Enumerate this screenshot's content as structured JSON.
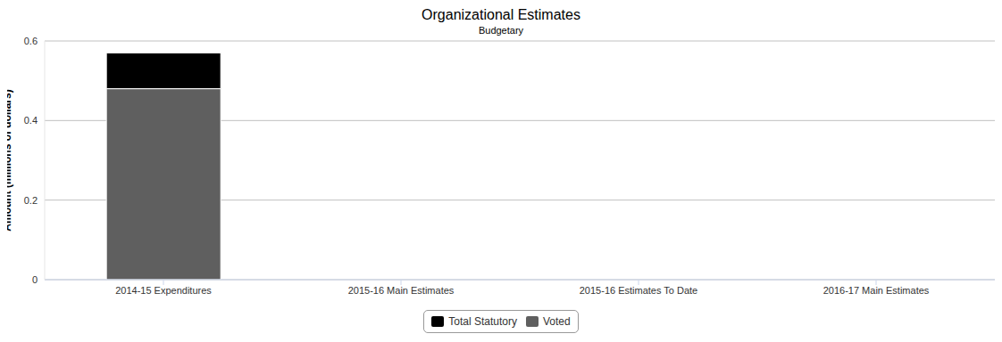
{
  "chart_data": {
    "type": "bar",
    "title": "Organizational Estimates",
    "subtitle": "Budgetary",
    "y_label": "Amount (millions of dollars)",
    "categories": [
      "2014-15 Expenditures",
      "2015-16 Main Estimates",
      "2015-16 Estimates To Date",
      "2016-17 Main Estimates"
    ],
    "series": [
      {
        "name": "Total Statutory",
        "color": "#000000",
        "values": [
          0.09,
          null,
          null,
          null
        ]
      },
      {
        "name": "Voted",
        "color": "#5f5f5f",
        "values": [
          0.48,
          null,
          null,
          null
        ]
      }
    ],
    "stacked": true,
    "ylim": [
      0,
      0.6
    ],
    "yticks": [
      0,
      0.2,
      0.4,
      0.6
    ],
    "grid": true,
    "legend": "bottom"
  }
}
